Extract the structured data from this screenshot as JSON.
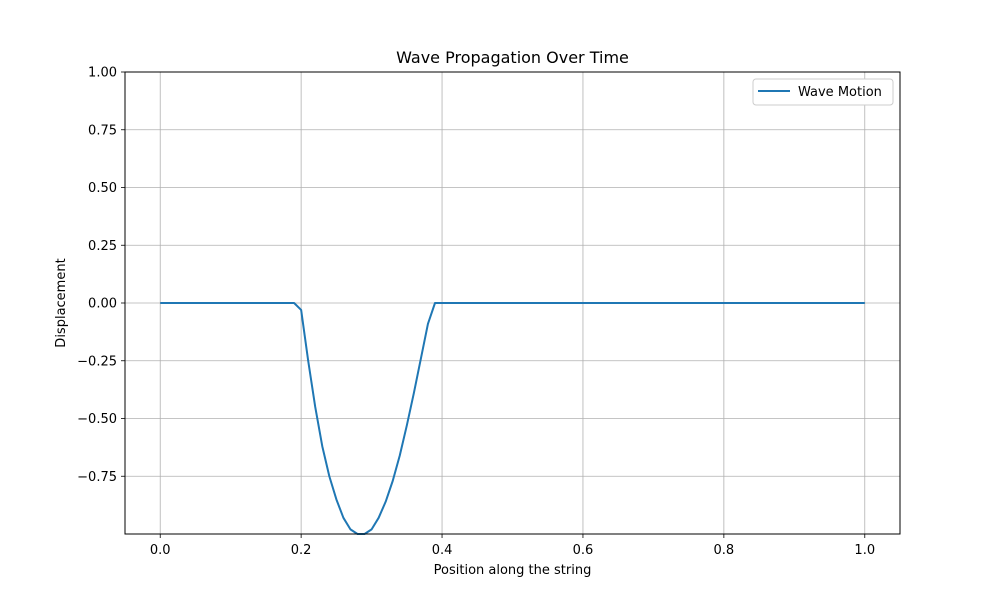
{
  "chart_data": {
    "type": "line",
    "title": "Wave Propagation Over Time",
    "xlabel": "Position along the string",
    "ylabel": "Displacement",
    "xlim": [
      -0.05,
      1.05
    ],
    "ylim": [
      -1.0,
      1.0
    ],
    "xticks": [
      0.0,
      0.2,
      0.4,
      0.6,
      0.8,
      1.0
    ],
    "xtick_labels": [
      "0.0",
      "0.2",
      "0.4",
      "0.6",
      "0.8",
      "1.0"
    ],
    "yticks": [
      -0.75,
      -0.5,
      -0.25,
      0.0,
      0.25,
      0.5,
      0.75,
      1.0
    ],
    "ytick_labels": [
      "−0.75",
      "−0.50",
      "−0.25",
      "0.00",
      "0.25",
      "0.50",
      "0.75",
      "1.00"
    ],
    "grid": true,
    "legend_position": "top-right",
    "series": [
      {
        "name": "Wave Motion",
        "color": "#1f77b4",
        "x": [
          0.0,
          0.19,
          0.2,
          0.21,
          0.22,
          0.23,
          0.24,
          0.25,
          0.26,
          0.27,
          0.28,
          0.29,
          0.3,
          0.31,
          0.32,
          0.33,
          0.34,
          0.35,
          0.36,
          0.37,
          0.38,
          0.39,
          0.4,
          0.41,
          0.5,
          0.6,
          0.7,
          0.8,
          0.9,
          1.0
        ],
        "y": [
          0.0,
          0.0,
          -0.03,
          -0.25,
          -0.45,
          -0.62,
          -0.75,
          -0.85,
          -0.93,
          -0.98,
          -1.0,
          -1.0,
          -0.98,
          -0.93,
          -0.86,
          -0.77,
          -0.66,
          -0.53,
          -0.39,
          -0.24,
          -0.09,
          0.0,
          0.0,
          0.0,
          0.0,
          0.0,
          0.0,
          0.0,
          0.0,
          0.0
        ]
      }
    ]
  }
}
